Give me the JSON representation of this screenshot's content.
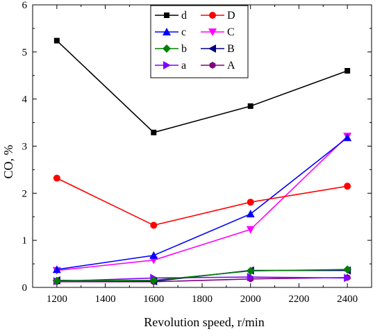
{
  "chart_data": {
    "type": "line",
    "xlabel": "Revolution speed, r/min",
    "ylabel": "CO, %",
    "xlim": [
      1100,
      2500
    ],
    "ylim": [
      0,
      6
    ],
    "x_ticks": [
      1200,
      1400,
      1600,
      1800,
      2000,
      2200,
      2400
    ],
    "y_ticks": [
      0,
      1,
      2,
      3,
      4,
      5,
      6
    ],
    "grid": false,
    "legend_position": "top-center",
    "x": [
      1200,
      1600,
      2000,
      2400
    ],
    "series": [
      {
        "name": "d",
        "color": "#000000",
        "marker": "square",
        "values": [
          5.24,
          3.29,
          3.85,
          4.6
        ]
      },
      {
        "name": "D",
        "color": "#ff0000",
        "marker": "circle",
        "values": [
          2.32,
          1.32,
          1.81,
          2.15
        ]
      },
      {
        "name": "c",
        "color": "#0000ff",
        "marker": "triangle-up",
        "values": [
          0.38,
          0.68,
          1.56,
          3.18
        ]
      },
      {
        "name": "C",
        "color": "#ff00ff",
        "marker": "triangle-down",
        "values": [
          0.36,
          0.58,
          1.23,
          3.21
        ]
      },
      {
        "name": "b",
        "color": "#008000",
        "marker": "diamond",
        "values": [
          0.14,
          0.15,
          0.35,
          0.38
        ]
      },
      {
        "name": "B",
        "color": "#000080",
        "marker": "triangle-left",
        "values": [
          0.15,
          0.13,
          0.36,
          0.36
        ]
      },
      {
        "name": "a",
        "color": "#8000ff",
        "marker": "triangle-right",
        "values": [
          0.13,
          0.2,
          0.22,
          0.2
        ]
      },
      {
        "name": "A",
        "color": "#800080",
        "marker": "hexagon",
        "values": [
          0.12,
          0.12,
          0.18,
          0.21
        ]
      }
    ]
  }
}
